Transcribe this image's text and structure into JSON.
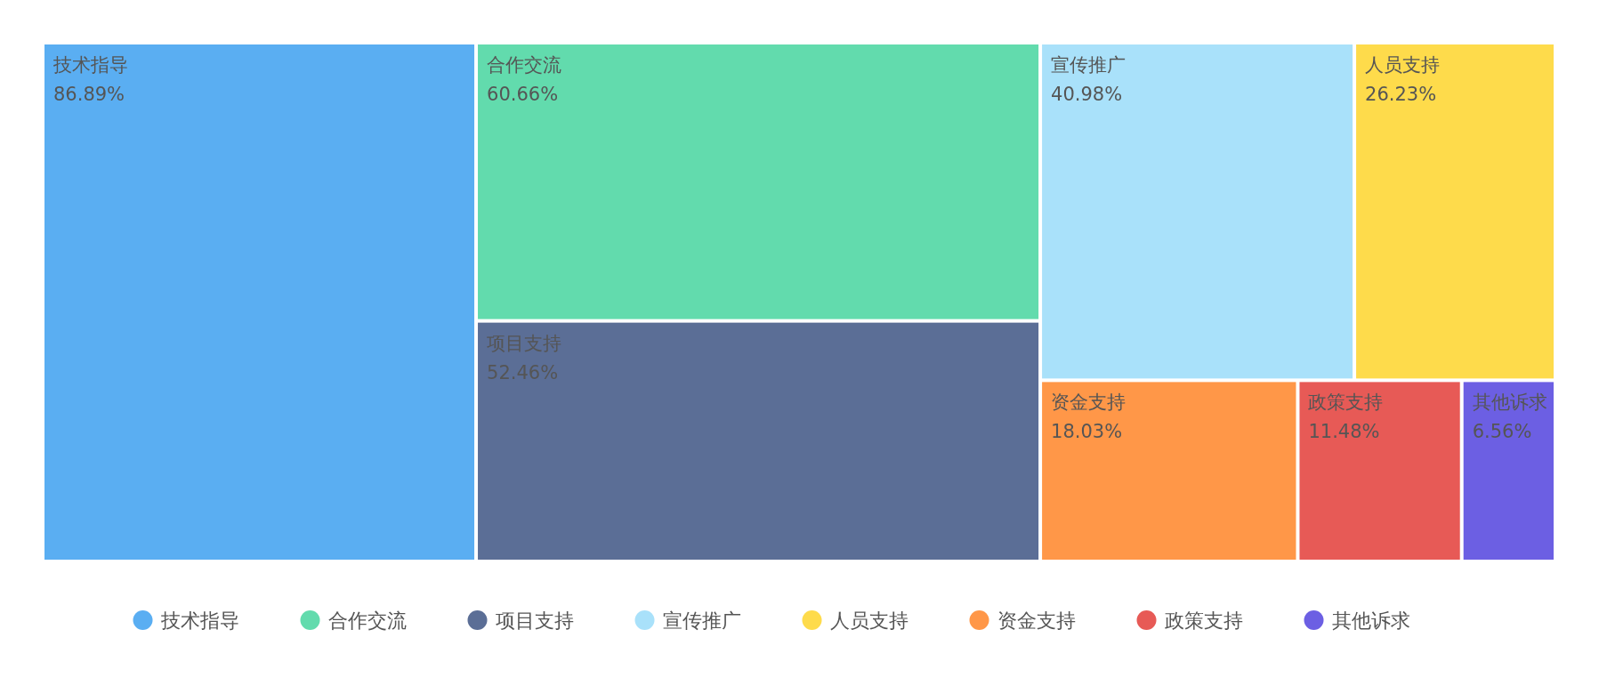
{
  "chart_data": {
    "type": "other",
    "categories": [
      "技术指导",
      "合作交流",
      "项目支持",
      "宣传推广",
      "人员支持",
      "资金支持",
      "政策支持",
      "其他诉求"
    ],
    "values": [
      86.89,
      60.66,
      52.46,
      40.98,
      26.23,
      18.03,
      11.48,
      6.56
    ],
    "value_labels": [
      "86.89%",
      "60.66%",
      "52.46%",
      "40.98%",
      "26.23%",
      "18.03%",
      "11.48%",
      "6.56%"
    ],
    "colors": [
      "#5aaef2",
      "#62dbad",
      "#5b6e96",
      "#a9e1fa",
      "#fedb4b",
      "#ff9748",
      "#e75a56",
      "#6c5fe3"
    ]
  }
}
